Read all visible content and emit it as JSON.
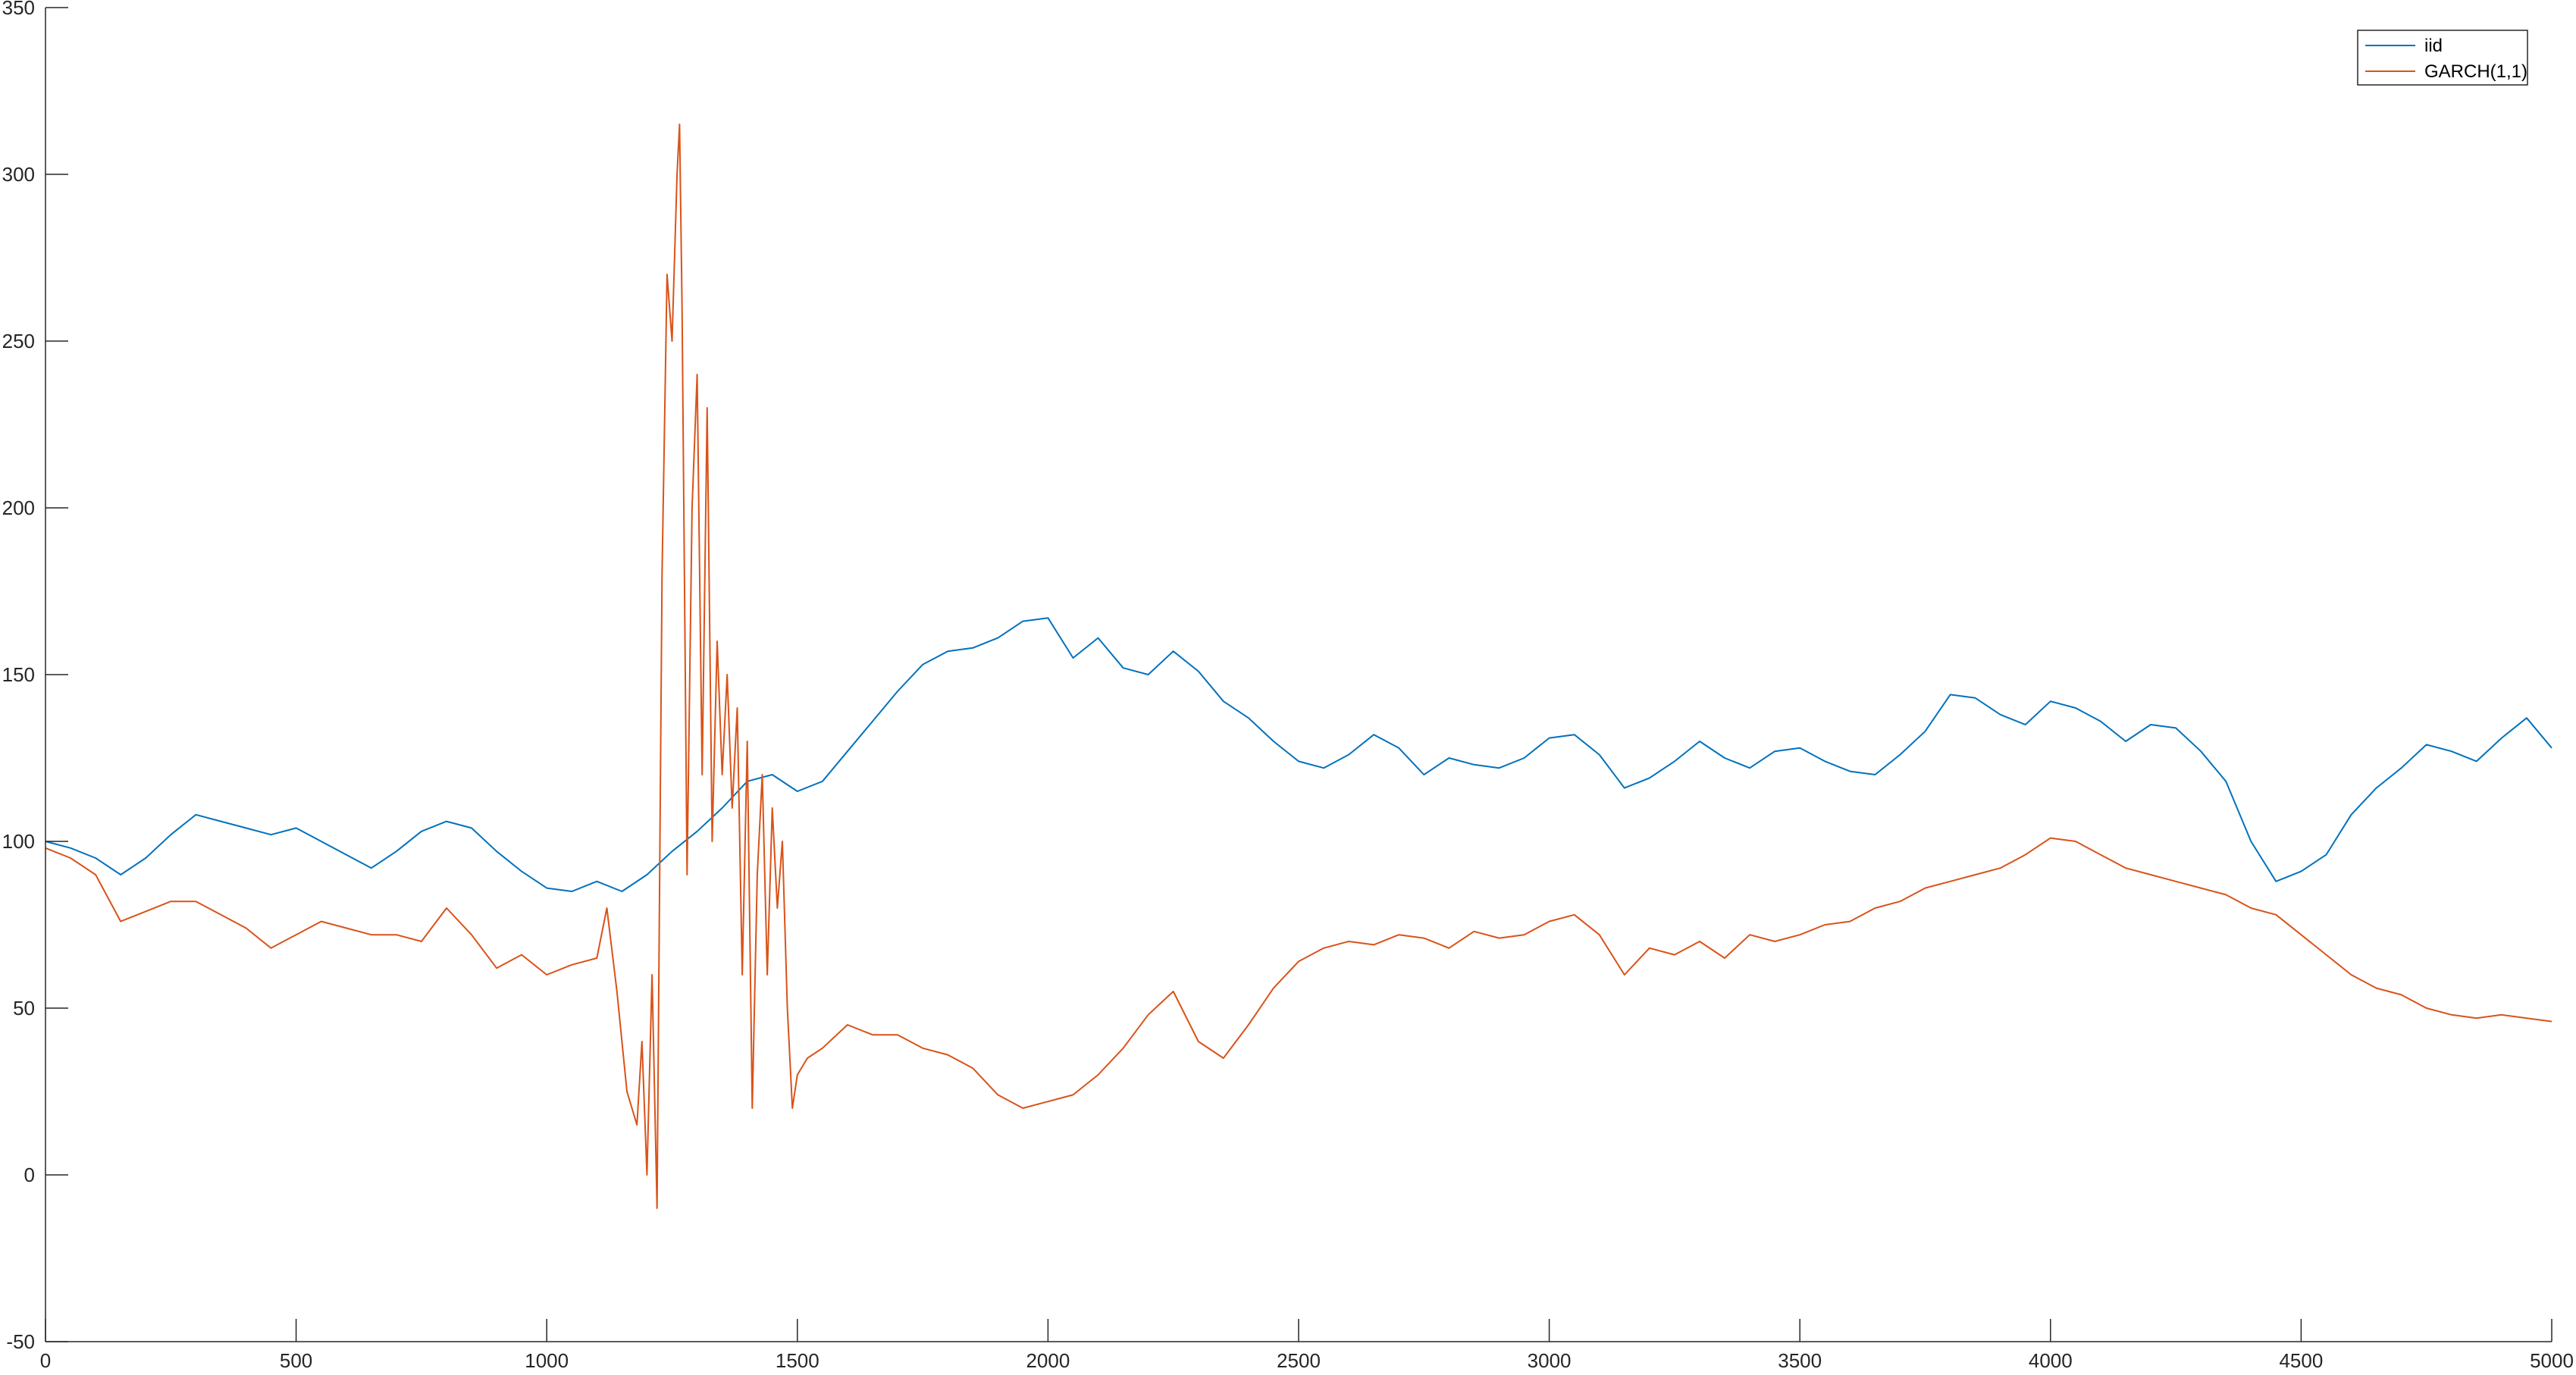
{
  "chart_data": {
    "type": "line",
    "title": "",
    "xlabel": "",
    "ylabel": "",
    "xlim": [
      0,
      5000
    ],
    "ylim": [
      -50,
      350
    ],
    "xticks": [
      0,
      500,
      1000,
      1500,
      2000,
      2500,
      3000,
      3500,
      4000,
      4500,
      5000
    ],
    "yticks": [
      -50,
      0,
      50,
      100,
      150,
      200,
      250,
      300,
      350
    ],
    "grid": false,
    "legend_position": "top-right",
    "legend": [
      "iid",
      "GARCH(1,1)"
    ],
    "series": [
      {
        "name": "iid",
        "color": "#0072BD",
        "x": [
          0,
          50,
          100,
          150,
          200,
          250,
          300,
          350,
          400,
          450,
          500,
          550,
          600,
          650,
          700,
          750,
          800,
          850,
          900,
          950,
          1000,
          1050,
          1100,
          1150,
          1200,
          1250,
          1300,
          1350,
          1400,
          1450,
          1500,
          1550,
          1600,
          1650,
          1700,
          1750,
          1800,
          1850,
          1900,
          1950,
          2000,
          2050,
          2100,
          2150,
          2200,
          2250,
          2300,
          2350,
          2400,
          2450,
          2500,
          2550,
          2600,
          2650,
          2700,
          2750,
          2800,
          2850,
          2900,
          2950,
          3000,
          3050,
          3100,
          3150,
          3200,
          3250,
          3300,
          3350,
          3400,
          3450,
          3500,
          3550,
          3600,
          3650,
          3700,
          3750,
          3800,
          3850,
          3900,
          3950,
          4000,
          4050,
          4100,
          4150,
          4200,
          4250,
          4300,
          4350,
          4400,
          4450,
          4500,
          4550,
          4600,
          4650,
          4700,
          4750,
          4800,
          4850,
          4900,
          4950,
          5000
        ],
        "values": [
          100,
          98,
          95,
          90,
          95,
          102,
          108,
          106,
          104,
          102,
          104,
          100,
          96,
          92,
          97,
          103,
          106,
          104,
          97,
          91,
          86,
          85,
          88,
          85,
          90,
          97,
          103,
          110,
          118,
          120,
          115,
          118,
          127,
          136,
          145,
          153,
          157,
          158,
          161,
          166,
          167,
          155,
          161,
          152,
          150,
          157,
          151,
          142,
          137,
          130,
          124,
          122,
          126,
          132,
          128,
          120,
          125,
          123,
          122,
          125,
          131,
          132,
          126,
          116,
          119,
          124,
          130,
          125,
          122,
          127,
          128,
          124,
          121,
          120,
          126,
          133,
          144,
          143,
          138,
          135,
          142,
          140,
          136,
          130,
          135,
          134,
          127,
          118,
          100,
          88,
          91,
          96,
          108,
          116,
          122,
          129,
          127,
          124,
          131,
          137,
          128
        ]
      },
      {
        "name": "GARCH(1,1)",
        "color": "#D95319",
        "x": [
          0,
          50,
          100,
          150,
          200,
          250,
          300,
          350,
          400,
          450,
          500,
          550,
          600,
          650,
          700,
          750,
          800,
          850,
          900,
          950,
          1000,
          1050,
          1100,
          1120,
          1140,
          1160,
          1180,
          1190,
          1200,
          1210,
          1220,
          1230,
          1240,
          1250,
          1260,
          1265,
          1270,
          1280,
          1290,
          1300,
          1310,
          1320,
          1330,
          1340,
          1350,
          1360,
          1370,
          1380,
          1390,
          1400,
          1410,
          1420,
          1430,
          1440,
          1450,
          1460,
          1470,
          1480,
          1490,
          1500,
          1520,
          1550,
          1600,
          1650,
          1700,
          1750,
          1800,
          1850,
          1900,
          1950,
          2000,
          2050,
          2100,
          2150,
          2200,
          2250,
          2300,
          2350,
          2400,
          2450,
          2500,
          2550,
          2600,
          2650,
          2700,
          2750,
          2800,
          2850,
          2900,
          2950,
          3000,
          3050,
          3100,
          3150,
          3200,
          3250,
          3300,
          3350,
          3400,
          3450,
          3500,
          3550,
          3600,
          3650,
          3700,
          3750,
          3800,
          3850,
          3900,
          3950,
          4000,
          4050,
          4100,
          4150,
          4200,
          4250,
          4300,
          4350,
          4400,
          4450,
          4500,
          4550,
          4600,
          4650,
          4700,
          4750,
          4800,
          4850,
          4900,
          4950,
          5000
        ],
        "values": [
          98,
          95,
          90,
          76,
          79,
          82,
          82,
          78,
          74,
          68,
          72,
          76,
          74,
          72,
          72,
          70,
          80,
          72,
          62,
          66,
          60,
          63,
          65,
          80,
          55,
          25,
          15,
          40,
          0,
          60,
          -10,
          180,
          270,
          250,
          300,
          315,
          260,
          90,
          200,
          240,
          120,
          230,
          100,
          160,
          120,
          150,
          110,
          140,
          60,
          130,
          20,
          90,
          120,
          60,
          110,
          80,
          100,
          50,
          20,
          30,
          35,
          38,
          45,
          42,
          42,
          38,
          36,
          32,
          24,
          20,
          22,
          24,
          30,
          38,
          48,
          55,
          40,
          35,
          45,
          56,
          64,
          68,
          70,
          69,
          72,
          71,
          68,
          73,
          71,
          72,
          76,
          78,
          72,
          60,
          68,
          66,
          70,
          65,
          72,
          70,
          72,
          75,
          76,
          80,
          82,
          86,
          88,
          90,
          92,
          96,
          101,
          100,
          96,
          92,
          90,
          88,
          86,
          84,
          80,
          78,
          72,
          66,
          60,
          56,
          54,
          50,
          48,
          47,
          48,
          47,
          46
        ]
      }
    ]
  }
}
